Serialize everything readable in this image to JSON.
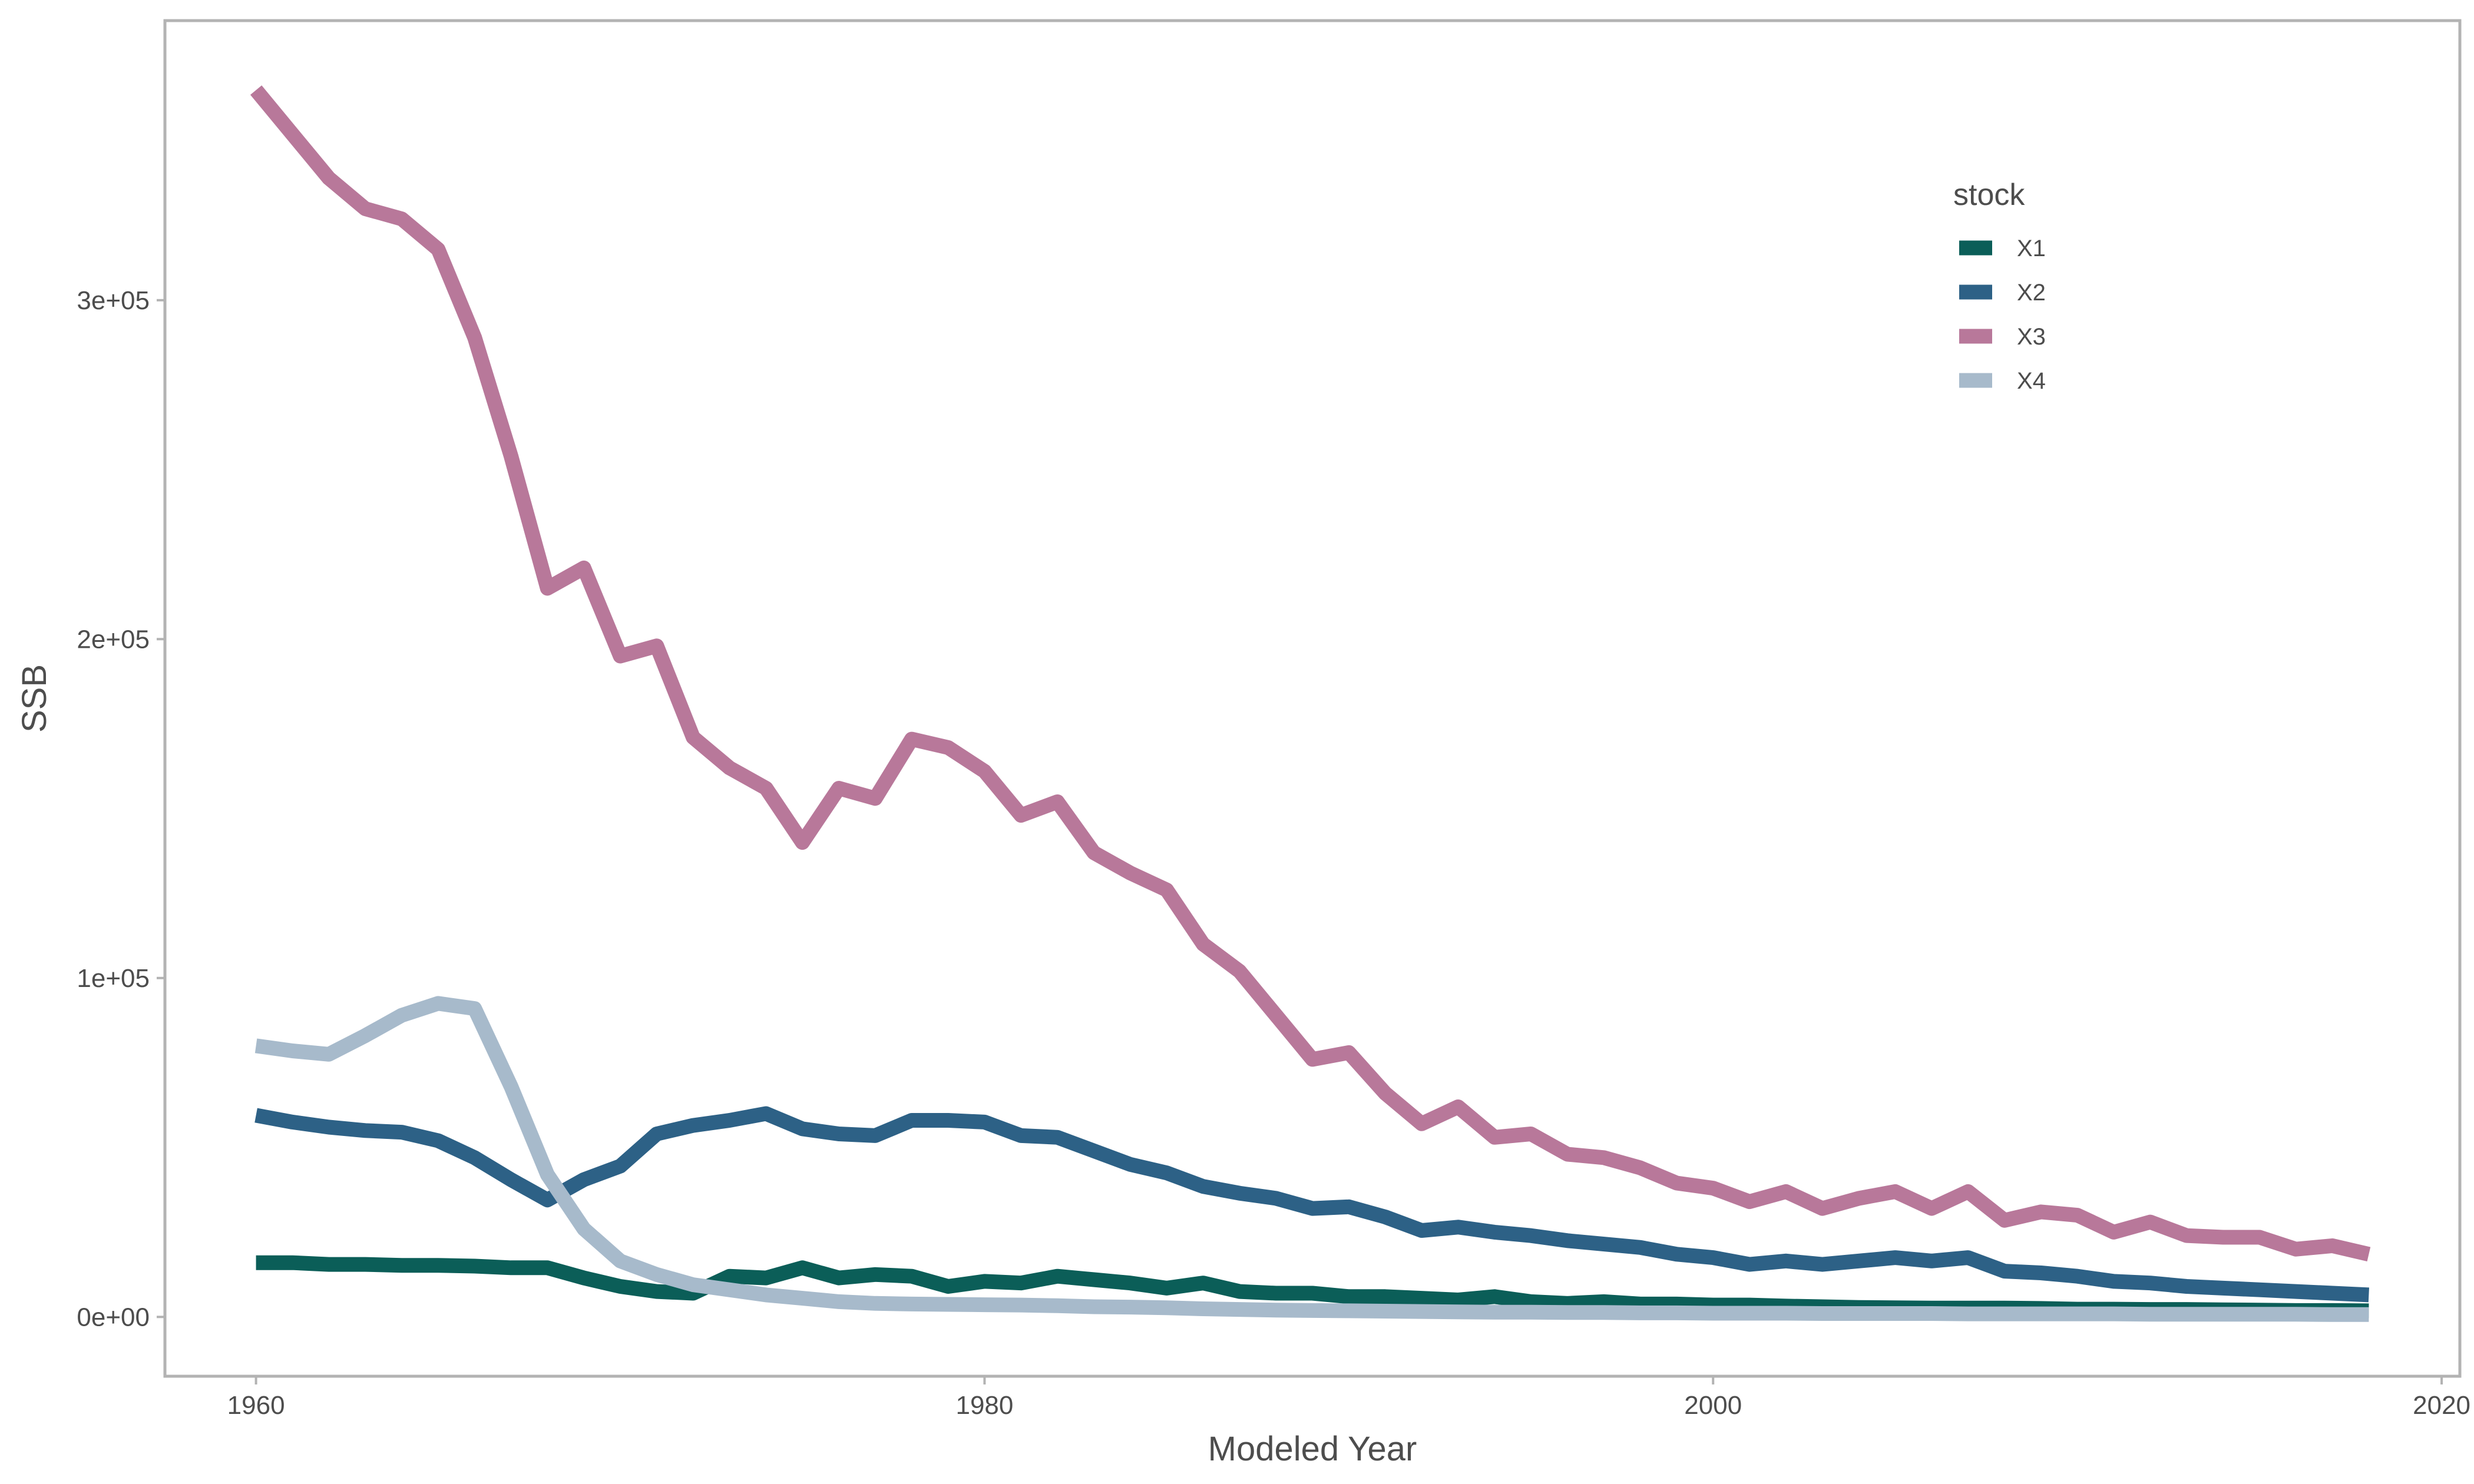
{
  "chart_data": {
    "type": "line",
    "title": "",
    "xlabel": "Modeled Year",
    "ylabel": "SSB",
    "xlim": [
      1957.5,
      2020.5
    ],
    "ylim": [
      -17500,
      382500
    ],
    "x_ticks": [
      1960,
      1980,
      2000,
      2020
    ],
    "y_ticks": [
      0,
      100000,
      200000,
      300000
    ],
    "y_tick_labels": [
      "0e+00",
      "1e+05",
      "2e+05",
      "3e+05"
    ],
    "grid": false,
    "legend_title": "stock",
    "legend_position": "top-right",
    "x": [
      1960,
      1961,
      1962,
      1963,
      1964,
      1965,
      1966,
      1967,
      1968,
      1969,
      1970,
      1971,
      1972,
      1973,
      1974,
      1975,
      1976,
      1977,
      1978,
      1979,
      1980,
      1981,
      1982,
      1983,
      1984,
      1985,
      1986,
      1987,
      1988,
      1989,
      1990,
      1991,
      1992,
      1993,
      1994,
      1995,
      1996,
      1997,
      1998,
      1999,
      2000,
      2001,
      2002,
      2003,
      2004,
      2005,
      2006,
      2007,
      2008,
      2009,
      2010,
      2011,
      2012,
      2013,
      2014,
      2015,
      2016,
      2017,
      2018
    ],
    "series": [
      {
        "name": "X1",
        "color": "#0b5e58",
        "values": [
          16000,
          16000,
          15500,
          15500,
          15200,
          15200,
          15000,
          14500,
          14500,
          11500,
          9000,
          7500,
          7000,
          12000,
          11500,
          14500,
          11500,
          12500,
          12000,
          9000,
          10500,
          10000,
          12000,
          11000,
          10000,
          8500,
          10000,
          7500,
          7000,
          7000,
          6000,
          6000,
          5500,
          5000,
          6000,
          4500,
          4000,
          4500,
          3800,
          3800,
          3500,
          3500,
          3200,
          3000,
          2800,
          2700,
          2600,
          2600,
          2600,
          2500,
          2300,
          2300,
          2200,
          2200,
          2100,
          2000,
          1900,
          1900,
          1800
        ]
      },
      {
        "name": "X2",
        "color": "#2d6186",
        "values": [
          59500,
          57500,
          56000,
          55000,
          54500,
          52000,
          47000,
          40500,
          34500,
          40500,
          44500,
          54000,
          56500,
          58000,
          60000,
          55500,
          54000,
          53500,
          58000,
          58000,
          57500,
          53500,
          53000,
          49000,
          45000,
          42500,
          38500,
          36500,
          35000,
          32000,
          32500,
          29500,
          25500,
          26500,
          25000,
          24000,
          22500,
          21500,
          20500,
          18500,
          17500,
          15500,
          16500,
          15500,
          16500,
          17500,
          16500,
          17500,
          13500,
          13000,
          12000,
          10500,
          10000,
          9000,
          8500,
          8000,
          7500,
          7000,
          6500
        ]
      },
      {
        "name": "X3",
        "color": "#b8789a",
        "values": [
          362000,
          349000,
          336000,
          327000,
          324000,
          315000,
          289000,
          254000,
          215000,
          221000,
          195000,
          198000,
          171000,
          162000,
          156000,
          140000,
          156000,
          153000,
          170500,
          168000,
          161000,
          148000,
          152000,
          137000,
          131000,
          126000,
          110000,
          102000,
          89000,
          76000,
          78000,
          66000,
          57000,
          62000,
          53000,
          54000,
          48000,
          47000,
          44000,
          39500,
          38000,
          34000,
          37000,
          32000,
          35000,
          37000,
          32000,
          37000,
          28500,
          31000,
          30000,
          25000,
          28000,
          24000,
          23500,
          23500,
          20000,
          21000,
          18500
        ]
      },
      {
        "name": "X4",
        "color": "#a7bacb",
        "values": [
          80000,
          78500,
          77500,
          83000,
          89000,
          92500,
          91000,
          68000,
          42000,
          26000,
          16500,
          12500,
          9500,
          8000,
          6500,
          5500,
          4500,
          4000,
          3800,
          3700,
          3600,
          3500,
          3300,
          3000,
          2900,
          2700,
          2400,
          2200,
          2000,
          1900,
          1800,
          1700,
          1600,
          1500,
          1400,
          1400,
          1300,
          1300,
          1200,
          1200,
          1100,
          1100,
          1100,
          1000,
          1000,
          1000,
          1000,
          900,
          900,
          900,
          900,
          900,
          800,
          800,
          800,
          800,
          800,
          700,
          700
        ]
      }
    ]
  }
}
